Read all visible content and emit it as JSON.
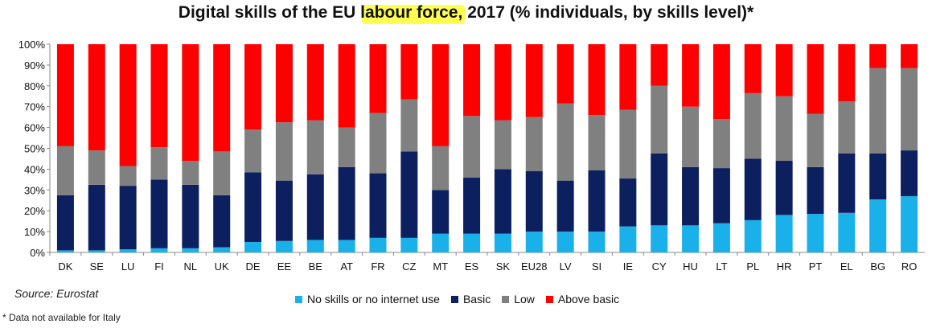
{
  "title": "Digital skills of the EU labour force, 2017 (% individuals, by skills level)*",
  "source": "Source: Eurostat",
  "footnote": "* Data not available for Italy",
  "colors": {
    "no_skills": "#1ab0ea",
    "basic": "#0c1f5e",
    "low": "#808080",
    "above_basic": "#ff0000",
    "highlight": "#ffff33"
  },
  "legend": [
    {
      "label": "No skills or no internet use",
      "color": "#1ab0ea"
    },
    {
      "label": "Basic",
      "color": "#0c1f5e"
    },
    {
      "label": "Low",
      "color": "#808080"
    },
    {
      "label": "Above basic",
      "color": "#ff0000"
    }
  ],
  "chart_data": {
    "type": "bar",
    "stacked": true,
    "title": "Digital skills of the EU labour force, 2017 (% individuals, by skills level)*",
    "ylim": [
      0,
      100
    ],
    "yticks": [
      "0%",
      "10%",
      "20%",
      "30%",
      "40%",
      "50%",
      "60%",
      "70%",
      "80%",
      "90%",
      "100%"
    ],
    "grid": false,
    "legend_position": "bottom",
    "categories": [
      "DK",
      "SE",
      "LU",
      "FI",
      "NL",
      "UK",
      "DE",
      "EE",
      "BE",
      "AT",
      "FR",
      "CZ",
      "MT",
      "ES",
      "SK",
      "EU28",
      "LV",
      "SI",
      "IE",
      "CY",
      "HU",
      "LT",
      "PL",
      "HR",
      "PT",
      "EL",
      "BG",
      "RO"
    ],
    "series": [
      {
        "name": "No skills or no internet use",
        "values": [
          1,
          1,
          1.5,
          2,
          2,
          2.5,
          5,
          5.5,
          6,
          6,
          7,
          7,
          9,
          9,
          9,
          10,
          10,
          10,
          12.5,
          13,
          13,
          14,
          15.5,
          18,
          18.5,
          19,
          25.5,
          27
        ]
      },
      {
        "name": "Basic",
        "values": [
          26.5,
          31.5,
          30.5,
          33,
          30.5,
          25,
          33.5,
          29,
          31.5,
          35,
          31,
          41.5,
          21,
          27,
          31,
          29,
          24.5,
          29.5,
          23,
          34.5,
          28,
          26.5,
          29.5,
          26,
          22.5,
          28.5,
          22,
          22
        ]
      },
      {
        "name": "Low",
        "values": [
          23.5,
          16.5,
          9.5,
          15.5,
          11.5,
          21,
          20.5,
          28,
          26,
          19,
          29,
          25,
          21,
          29.5,
          23.5,
          26,
          37,
          26.5,
          33,
          32.5,
          29,
          23.5,
          31.5,
          31,
          25.5,
          25,
          41,
          39.5
        ]
      },
      {
        "name": "Above basic",
        "values": [
          49,
          51,
          58.5,
          49.5,
          56,
          51.5,
          41,
          37.5,
          36.5,
          40,
          33,
          26.5,
          49,
          34.5,
          36.5,
          35,
          28.5,
          34,
          31.5,
          20,
          30,
          36,
          23.5,
          25,
          33.5,
          27.5,
          11.5,
          11.5
        ]
      }
    ]
  }
}
